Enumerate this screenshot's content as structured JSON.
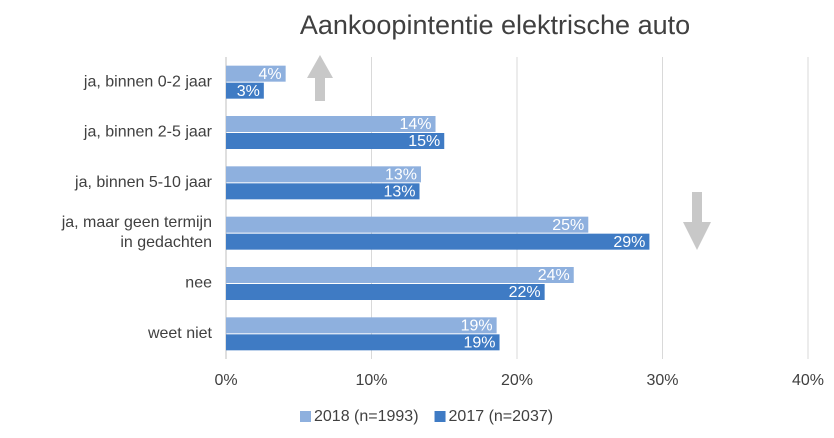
{
  "chart_data": {
    "type": "barh",
    "title": "Aankoopintentie elektrische auto",
    "categories": [
      "ja, binnen 0-2 jaar",
      "ja, binnen 2-5 jaar",
      "ja, binnen 5-10 jaar",
      "ja, maar geen termijn\nin gedachten",
      "nee",
      "weet niet"
    ],
    "series": [
      {
        "name": "2018 (n=1993)",
        "color": "#8eb0de",
        "values": [
          4.1,
          14.4,
          13.4,
          24.9,
          23.9,
          18.6
        ],
        "value_labels": [
          "4%",
          "14%",
          "13%",
          "25%",
          "24%",
          "19%"
        ]
      },
      {
        "name": "2017 (n=2037)",
        "color": "#3f7bc4",
        "values": [
          2.6,
          15.0,
          13.3,
          29.1,
          21.9,
          18.8
        ],
        "value_labels": [
          "3%",
          "15%",
          "13%",
          "29%",
          "22%",
          "19%"
        ]
      }
    ],
    "xlim": [
      0,
      40
    ],
    "xticks": [
      {
        "value": 0,
        "label": "0%"
      },
      {
        "value": 10,
        "label": "10%"
      },
      {
        "value": 20,
        "label": "20%"
      },
      {
        "value": 30,
        "label": "30%"
      },
      {
        "value": 40,
        "label": "40%"
      }
    ],
    "grid": true,
    "legend": "bottom"
  }
}
